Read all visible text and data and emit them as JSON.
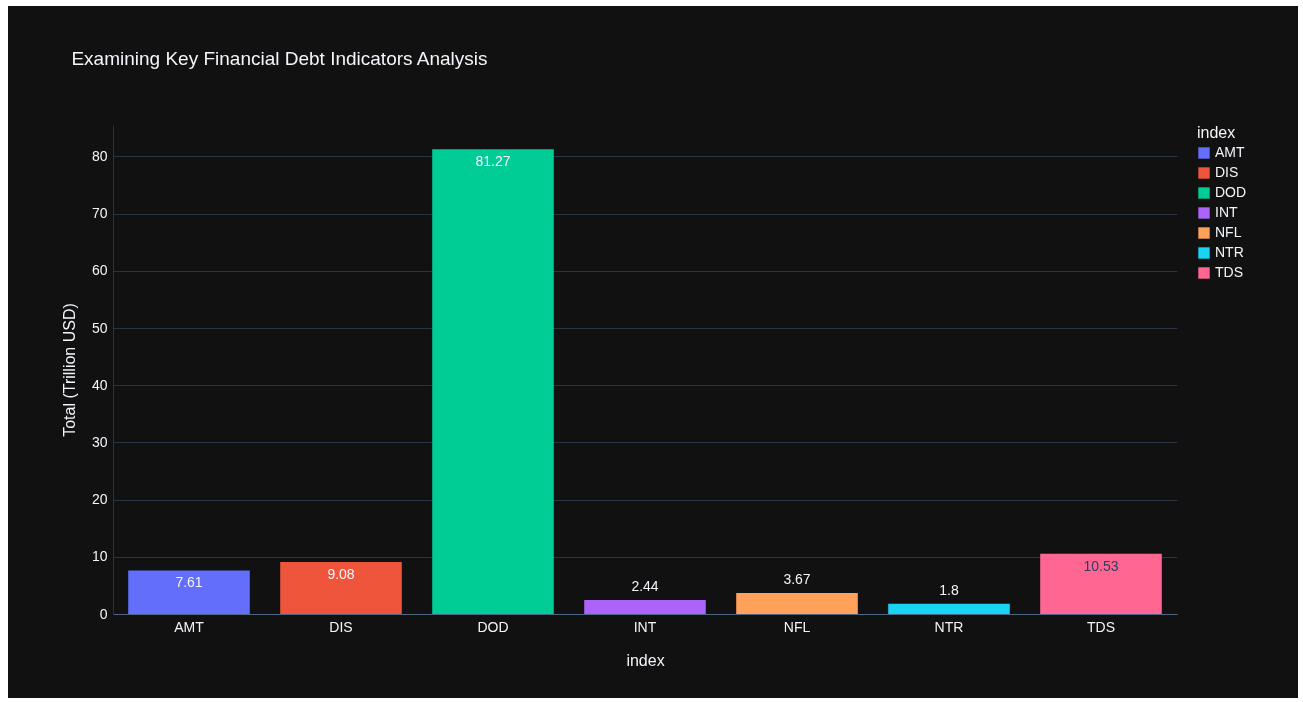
{
  "chart_data": {
    "type": "bar",
    "title": "Examining Key Financial Debt Indicators Analysis",
    "xlabel": "index",
    "ylabel": "Total (Trillion USD)",
    "legend_title": "index",
    "categories": [
      "AMT",
      "DIS",
      "DOD",
      "INT",
      "NFL",
      "NTR",
      "TDS"
    ],
    "series": [
      {
        "name": "AMT",
        "color": "#636efa",
        "values": [
          7.61,
          null,
          null,
          null,
          null,
          null,
          null
        ]
      },
      {
        "name": "DIS",
        "color": "#ef553b",
        "values": [
          null,
          9.08,
          null,
          null,
          null,
          null,
          null
        ]
      },
      {
        "name": "DOD",
        "color": "#00cc96",
        "values": [
          null,
          null,
          81.27,
          null,
          null,
          null,
          null
        ]
      },
      {
        "name": "INT",
        "color": "#ab63fa",
        "values": [
          null,
          null,
          null,
          2.44,
          null,
          null,
          null
        ]
      },
      {
        "name": "NFL",
        "color": "#ffa15a",
        "values": [
          null,
          null,
          null,
          null,
          3.67,
          null,
          null
        ]
      },
      {
        "name": "NTR",
        "color": "#19d3f3",
        "values": [
          null,
          null,
          null,
          null,
          null,
          1.8,
          null
        ]
      },
      {
        "name": "TDS",
        "color": "#ff6692",
        "values": [
          null,
          null,
          null,
          null,
          null,
          null,
          10.53
        ]
      }
    ],
    "ylim": [
      0,
      85.5
    ],
    "yticks": [
      0,
      10,
      20,
      30,
      40,
      50,
      60,
      70,
      80
    ],
    "grid": "y",
    "legend": "right",
    "data_labels": true
  }
}
